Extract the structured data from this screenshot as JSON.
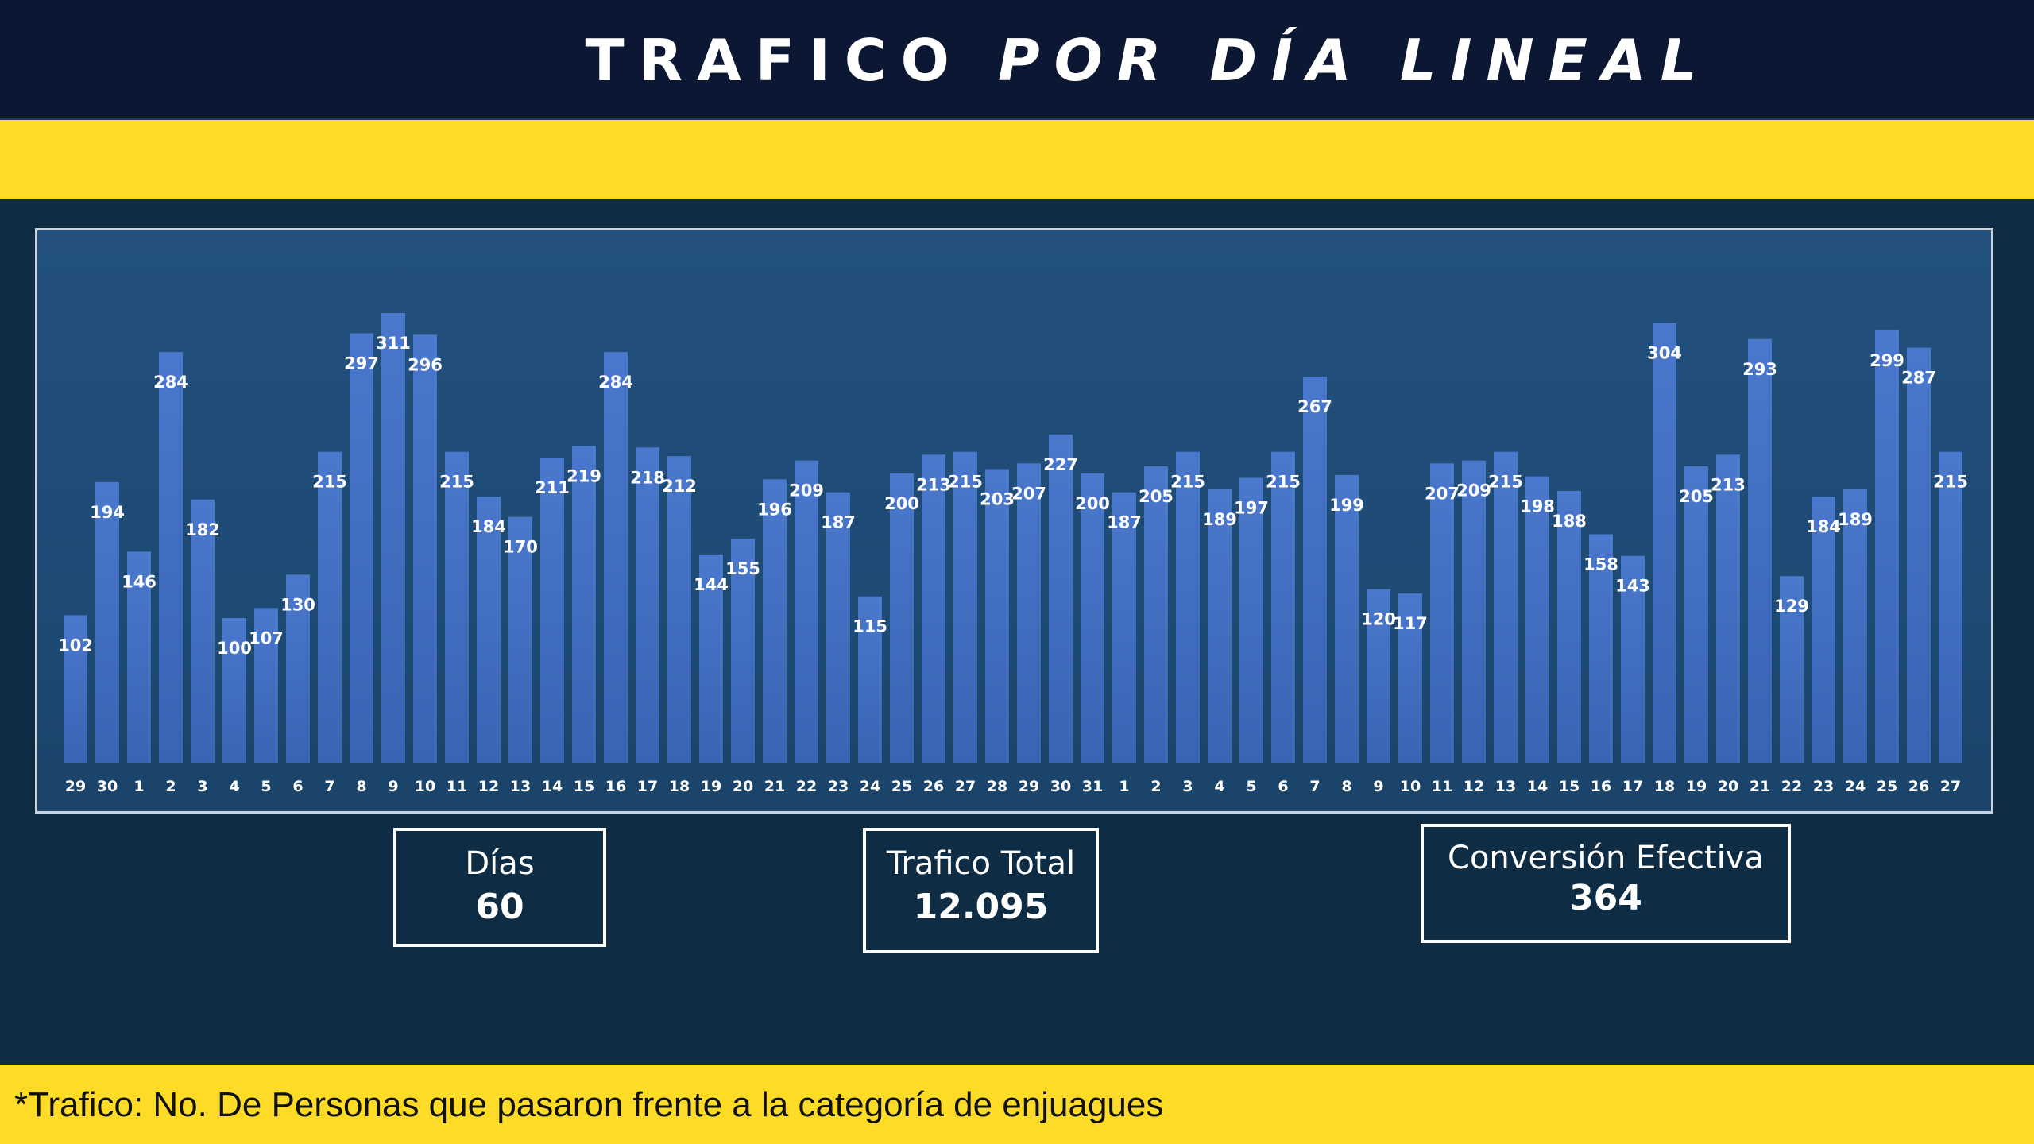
{
  "header": {
    "title_upright": "TRAFICO",
    "title_italic": "POR DÍA LINEAL"
  },
  "stats": [
    {
      "label": "Días",
      "value": "60"
    },
    {
      "label": "Trafico Total",
      "value": "12.095"
    },
    {
      "label": "Conversión  Efectiva",
      "value": "364"
    }
  ],
  "footer": {
    "note": "*Trafico: No.  De Personas que pasaron frente a la categoría de enjuagues"
  },
  "colors": {
    "bar": "#4472c4",
    "header": "#0c1833",
    "accent": "#fedb26",
    "background": "#0e2d45"
  },
  "chart_data": {
    "type": "bar",
    "title": "TRAFICO POR DÍA LINEAL",
    "xlabel": "",
    "ylabel": "",
    "ylim": [
      0,
      311
    ],
    "grid": false,
    "categories": [
      "29",
      "30",
      "1",
      "2",
      "3",
      "4",
      "5",
      "6",
      "7",
      "8",
      "9",
      "10",
      "11",
      "12",
      "13",
      "14",
      "15",
      "16",
      "17",
      "18",
      "19",
      "20",
      "21",
      "22",
      "23",
      "24",
      "25",
      "26",
      "27",
      "28",
      "29",
      "30",
      "31",
      "1",
      "2",
      "3",
      "4",
      "5",
      "6",
      "7",
      "8",
      "9",
      "10",
      "11",
      "12",
      "13",
      "14",
      "15",
      "16",
      "17",
      "18",
      "19",
      "20",
      "21",
      "22",
      "23",
      "24",
      "25",
      "26",
      "27"
    ],
    "values": [
      102,
      194,
      146,
      284,
      182,
      100,
      107,
      130,
      215,
      297,
      311,
      296,
      215,
      184,
      170,
      211,
      219,
      284,
      218,
      212,
      144,
      155,
      196,
      209,
      187,
      115,
      200,
      213,
      215,
      203,
      207,
      227,
      200,
      187,
      205,
      215,
      189,
      197,
      215,
      267,
      199,
      120,
      117,
      207,
      209,
      215,
      198,
      188,
      158,
      143,
      304,
      205,
      213,
      293,
      129,
      184,
      189,
      299,
      287,
      215
    ]
  }
}
